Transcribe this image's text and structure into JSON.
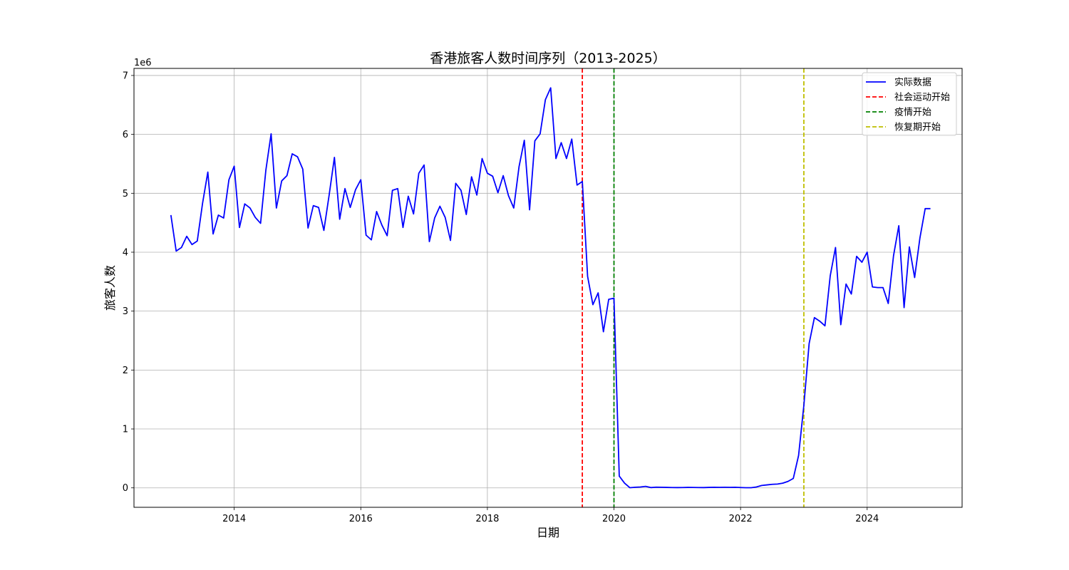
{
  "chart_data": {
    "type": "line",
    "title": "香港旅客人数时间序列（2013-2025）",
    "xlabel": "日期",
    "ylabel": "旅客人数",
    "y_offset_label": "1e6",
    "y_multiplier": 1000000,
    "xlim": [
      "2012-06-01",
      "2025-07-01"
    ],
    "ylim": [
      -330000,
      7120000
    ],
    "x_ticks": [
      {
        "value": "2014-01-01",
        "label": "2014"
      },
      {
        "value": "2016-01-01",
        "label": "2016"
      },
      {
        "value": "2018-01-01",
        "label": "2018"
      },
      {
        "value": "2020-01-01",
        "label": "2020"
      },
      {
        "value": "2022-01-01",
        "label": "2022"
      },
      {
        "value": "2024-01-01",
        "label": "2024"
      }
    ],
    "y_ticks": [
      {
        "value": 0,
        "label": "0"
      },
      {
        "value": 1000000,
        "label": "1"
      },
      {
        "value": 2000000,
        "label": "2"
      },
      {
        "value": 3000000,
        "label": "3"
      },
      {
        "value": 4000000,
        "label": "4"
      },
      {
        "value": 5000000,
        "label": "5"
      },
      {
        "value": 6000000,
        "label": "6"
      },
      {
        "value": 7000000,
        "label": "7"
      }
    ],
    "grid": true,
    "legend_position": "top-right",
    "series": [
      {
        "name": "实际数据",
        "color": "#0000ff",
        "style": "solid",
        "x": [
          "2013-01",
          "2013-02",
          "2013-03",
          "2013-04",
          "2013-05",
          "2013-06",
          "2013-07",
          "2013-08",
          "2013-09",
          "2013-10",
          "2013-11",
          "2013-12",
          "2014-01",
          "2014-02",
          "2014-03",
          "2014-04",
          "2014-05",
          "2014-06",
          "2014-07",
          "2014-08",
          "2014-09",
          "2014-10",
          "2014-11",
          "2014-12",
          "2015-01",
          "2015-02",
          "2015-03",
          "2015-04",
          "2015-05",
          "2015-06",
          "2015-07",
          "2015-08",
          "2015-09",
          "2015-10",
          "2015-11",
          "2015-12",
          "2016-01",
          "2016-02",
          "2016-03",
          "2016-04",
          "2016-05",
          "2016-06",
          "2016-07",
          "2016-08",
          "2016-09",
          "2016-10",
          "2016-11",
          "2016-12",
          "2017-01",
          "2017-02",
          "2017-03",
          "2017-04",
          "2017-05",
          "2017-06",
          "2017-07",
          "2017-08",
          "2017-09",
          "2017-10",
          "2017-11",
          "2017-12",
          "2018-01",
          "2018-02",
          "2018-03",
          "2018-04",
          "2018-05",
          "2018-06",
          "2018-07",
          "2018-08",
          "2018-09",
          "2018-10",
          "2018-11",
          "2018-12",
          "2019-01",
          "2019-02",
          "2019-03",
          "2019-04",
          "2019-05",
          "2019-06",
          "2019-07",
          "2019-08",
          "2019-09",
          "2019-10",
          "2019-11",
          "2019-12",
          "2020-01",
          "2020-02",
          "2020-03",
          "2020-04",
          "2020-05",
          "2020-06",
          "2020-07",
          "2020-08",
          "2020-09",
          "2020-10",
          "2020-11",
          "2020-12",
          "2021-01",
          "2021-02",
          "2021-03",
          "2021-04",
          "2021-05",
          "2021-06",
          "2021-07",
          "2021-08",
          "2021-09",
          "2021-10",
          "2021-11",
          "2021-12",
          "2022-01",
          "2022-02",
          "2022-03",
          "2022-04",
          "2022-05",
          "2022-06",
          "2022-07",
          "2022-08",
          "2022-09",
          "2022-10",
          "2022-11",
          "2022-12",
          "2023-01",
          "2023-02",
          "2023-03",
          "2023-04",
          "2023-05",
          "2023-06",
          "2023-07",
          "2023-08",
          "2023-09",
          "2023-10",
          "2023-11",
          "2023-12",
          "2024-01",
          "2024-02",
          "2024-03",
          "2024-04",
          "2024-05",
          "2024-06",
          "2024-07",
          "2024-08",
          "2024-09",
          "2024-10",
          "2024-11",
          "2024-12",
          "2025-01"
        ],
        "y": [
          4630000,
          4020000,
          4080000,
          4270000,
          4130000,
          4190000,
          4830000,
          5360000,
          4310000,
          4630000,
          4580000,
          5230000,
          5460000,
          4420000,
          4820000,
          4750000,
          4590000,
          4490000,
          5390000,
          6010000,
          4750000,
          5210000,
          5300000,
          5670000,
          5620000,
          5410000,
          4410000,
          4790000,
          4760000,
          4370000,
          4970000,
          5610000,
          4560000,
          5080000,
          4760000,
          5060000,
          5230000,
          4290000,
          4210000,
          4690000,
          4460000,
          4280000,
          5050000,
          5080000,
          4420000,
          4950000,
          4650000,
          5340000,
          5480000,
          4180000,
          4580000,
          4780000,
          4590000,
          4200000,
          5170000,
          5050000,
          4640000,
          5280000,
          4970000,
          5590000,
          5340000,
          5290000,
          5010000,
          5300000,
          4960000,
          4750000,
          5450000,
          5900000,
          4720000,
          5890000,
          6010000,
          6590000,
          6790000,
          5590000,
          5860000,
          5590000,
          5920000,
          5140000,
          5200000,
          3590000,
          3110000,
          3310000,
          2650000,
          3200000,
          3220000,
          200000,
          80000,
          3000,
          10000,
          15000,
          25000,
          5000,
          12000,
          10000,
          8000,
          6000,
          5000,
          6000,
          8000,
          7000,
          6000,
          5000,
          8000,
          10000,
          9000,
          10000,
          9000,
          10000,
          6000,
          3000,
          3000,
          15000,
          40000,
          50000,
          60000,
          65000,
          80000,
          110000,
          160000,
          550000,
          1400000,
          2450000,
          2890000,
          2830000,
          2750000,
          3600000,
          4080000,
          2770000,
          3460000,
          3290000,
          3930000,
          3830000,
          4000000,
          3410000,
          3400000,
          3400000,
          3130000,
          3940000,
          4450000,
          3060000,
          4090000,
          3570000,
          4240000,
          4740000,
          4740000
        ]
      }
    ],
    "reference_lines": [
      {
        "name": "社会运动开始",
        "x": "2019-07-01",
        "color": "#ff0000",
        "style": "dashed"
      },
      {
        "name": "疫情开始",
        "x": "2020-01-01",
        "color": "#008000",
        "style": "dashed"
      },
      {
        "name": "恢复期开始",
        "x": "2023-01-01",
        "color": "#bfbf00",
        "style": "dashed"
      }
    ]
  }
}
